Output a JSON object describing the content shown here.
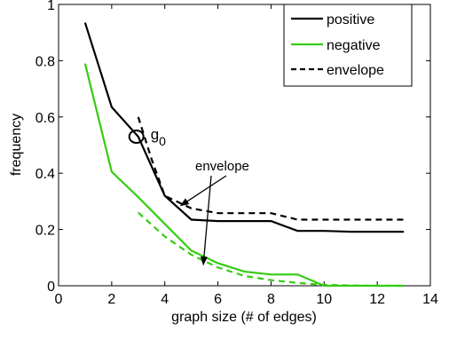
{
  "chart_data": {
    "type": "line",
    "xlabel": "graph size (# of edges)",
    "ylabel": "frequency",
    "xlim": [
      0,
      14
    ],
    "ylim": [
      0,
      1
    ],
    "x_ticks": [
      0,
      2,
      4,
      6,
      8,
      10,
      12,
      14
    ],
    "y_ticks": [
      0,
      0.2,
      0.4,
      0.6,
      0.8,
      1
    ],
    "x_tick_labels": [
      "0",
      "2",
      "4",
      "6",
      "8",
      "10",
      "12",
      "14"
    ],
    "y_tick_labels": [
      "0",
      "0.2",
      "0.4",
      "0.6",
      "0.8",
      "1"
    ],
    "grid": false,
    "legend_position": "top-right",
    "series": [
      {
        "name": "positive",
        "color": "#000000",
        "dash": "solid",
        "x": [
          1,
          2,
          3,
          4,
          5,
          6,
          7,
          8,
          9,
          10,
          11,
          12,
          13
        ],
        "y": [
          0.935,
          0.635,
          0.53,
          0.32,
          0.235,
          0.23,
          0.23,
          0.23,
          0.195,
          0.195,
          0.192,
          0.192,
          0.192
        ]
      },
      {
        "name": "negative",
        "color": "#33cc11",
        "dash": "solid",
        "x": [
          1,
          2,
          3,
          4,
          5,
          6,
          7,
          8,
          9,
          10,
          11,
          12,
          13
        ],
        "y": [
          0.79,
          0.405,
          0.315,
          0.22,
          0.125,
          0.08,
          0.05,
          0.04,
          0.04,
          0.0,
          0.0,
          0.0,
          0.0
        ]
      },
      {
        "name": "envelope",
        "color": "#000000",
        "dash": "dashed",
        "x": [
          3,
          3.5,
          4,
          5,
          6,
          7,
          8,
          9,
          10,
          11,
          12,
          13
        ],
        "y": [
          0.6,
          0.45,
          0.32,
          0.275,
          0.258,
          0.258,
          0.258,
          0.235,
          0.235,
          0.235,
          0.235,
          0.235
        ]
      },
      {
        "name": "",
        "color": "#33cc11",
        "dash": "dashed",
        "x": [
          3,
          4,
          5,
          6,
          7,
          8,
          9,
          10,
          11,
          12,
          13
        ],
        "y": [
          0.26,
          0.175,
          0.11,
          0.065,
          0.035,
          0.02,
          0.01,
          0.003,
          0.001,
          0.0,
          0.0
        ]
      }
    ],
    "annotations": {
      "g_label": "g",
      "g_subscript": "0",
      "g_point": {
        "x": 2.93,
        "y": 0.53
      },
      "envelope_text": "envelope",
      "arrow_targets": [
        {
          "x": 4.6,
          "y": 0.285
        },
        {
          "x": 5.45,
          "y": 0.075
        }
      ]
    }
  }
}
